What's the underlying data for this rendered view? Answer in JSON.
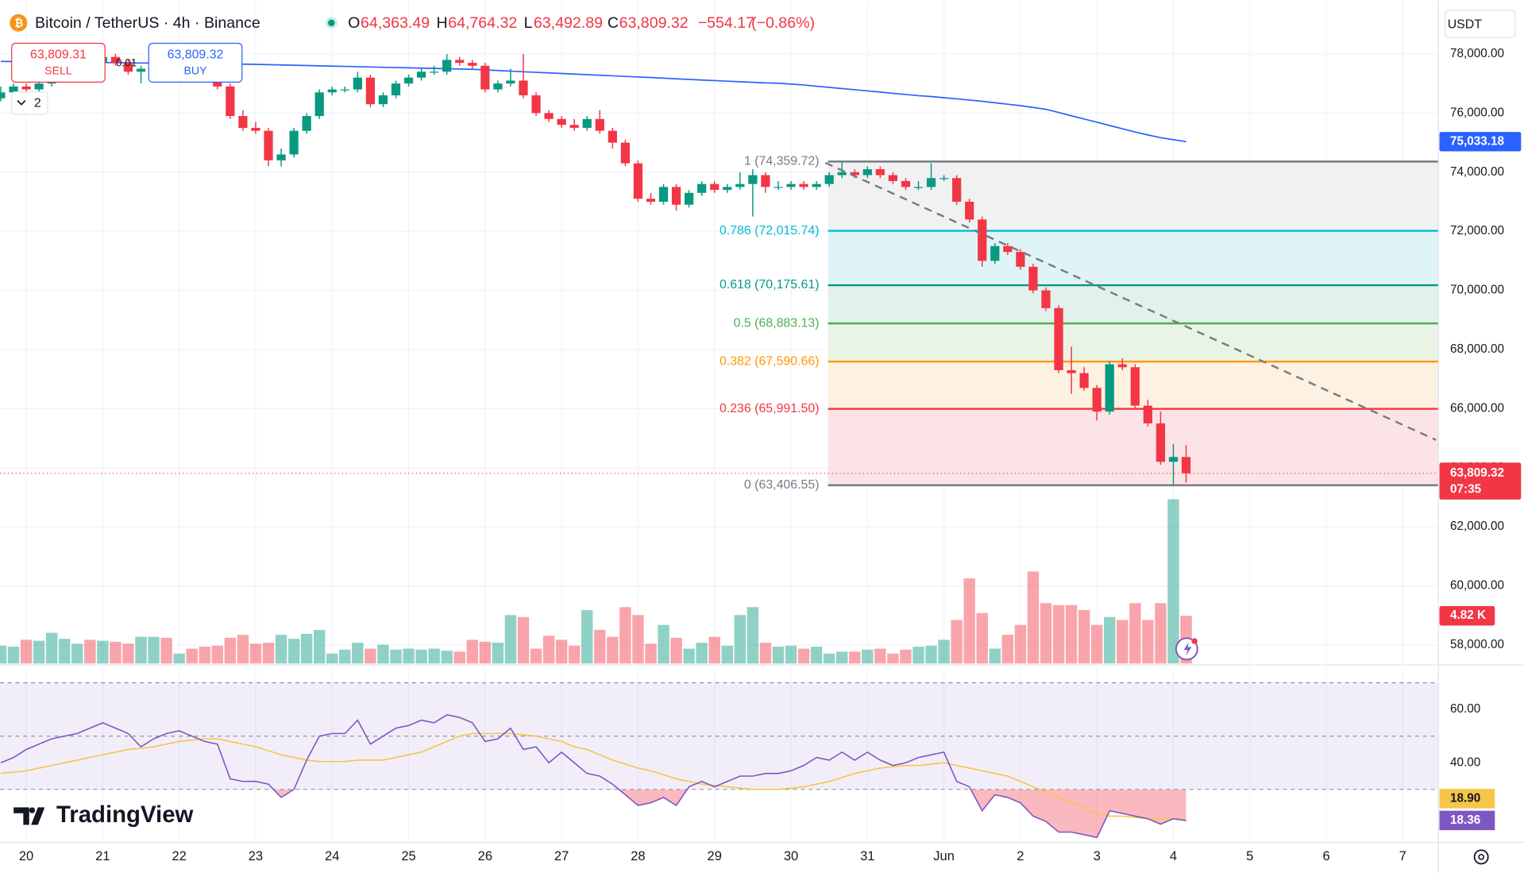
{
  "header": {
    "title": "Bitcoin / TetherUS · 4h · Binance",
    "ohlc": [
      {
        "key": "O",
        "value": 64363.49,
        "label": "64,363.49"
      },
      {
        "key": "H",
        "value": 64764.32,
        "label": "64,764.32"
      },
      {
        "key": "L",
        "value": 63492.89,
        "label": "63,492.89"
      },
      {
        "key": "C",
        "value": 63809.32,
        "label": "63,809.32"
      }
    ],
    "change": {
      "value": -554.17,
      "label": "−554.17"
    },
    "change_pct": {
      "value": -0.86,
      "label": "(−0.86%)"
    }
  },
  "trade": {
    "sell_price": {
      "value": 63809.31,
      "label": "63,809.31"
    },
    "sell": "SELL",
    "spread": 0.01,
    "buy_price": {
      "value": 63809.32,
      "label": "63,809.32"
    },
    "buy": "BUY",
    "indicators": 2
  },
  "currency": "USDT",
  "logo": "TradingView",
  "chart_data": {
    "type": "candlestick",
    "xlim": [
      -0.06,
      112.8
    ],
    "xticks": [
      {
        "value": 2,
        "label": "20"
      },
      {
        "value": 8,
        "label": "21"
      },
      {
        "value": 14,
        "label": "22"
      },
      {
        "value": 20,
        "label": "23"
      },
      {
        "value": 26,
        "label": "24"
      },
      {
        "value": 32,
        "label": "25"
      },
      {
        "value": 38,
        "label": "26"
      },
      {
        "value": 44,
        "label": "27"
      },
      {
        "value": 50,
        "label": "28"
      },
      {
        "value": 56,
        "label": "29"
      },
      {
        "value": 62,
        "label": "30"
      },
      {
        "value": 68,
        "label": "31"
      },
      {
        "value": 74,
        "label": "Jun"
      },
      {
        "value": 80,
        "label": "2"
      },
      {
        "value": 86,
        "label": "3"
      },
      {
        "value": 92,
        "label": "4"
      },
      {
        "value": 98,
        "label": "5"
      },
      {
        "value": 104,
        "label": "6"
      },
      {
        "value": 110,
        "label": "7"
      }
    ],
    "ylim": [
      57375,
      79810
    ],
    "yticks": [
      {
        "value": 58000,
        "label": "58,000.00"
      },
      {
        "value": 60000,
        "label": "60,000.00"
      },
      {
        "value": 62000,
        "label": "62,000.00"
      },
      {
        "value": 64000,
        "label": "64,000.00"
      },
      {
        "value": 66000,
        "label": "66,000.00"
      },
      {
        "value": 68000,
        "label": "68,000.00"
      },
      {
        "value": 70000,
        "label": "70,000.00"
      },
      {
        "value": 72000,
        "label": "72,000.00"
      },
      {
        "value": 74000,
        "label": "74,000.00"
      },
      {
        "value": 76000,
        "label": "76,000.00"
      },
      {
        "value": 78000,
        "label": "78,000.00"
      }
    ],
    "grid": true,
    "up_color": "#089981",
    "down_color": "#f23645",
    "candles": [
      [
        76500,
        76900,
        76400,
        76700
      ],
      [
        76700,
        77000,
        76600,
        76900
      ],
      [
        76900,
        77000,
        76700,
        76800
      ],
      [
        76800,
        77100,
        76700,
        77000
      ],
      [
        77000,
        77300,
        76900,
        77200
      ],
      [
        77200,
        77600,
        77100,
        77500
      ],
      [
        77500,
        77900,
        77400,
        77800
      ],
      [
        77800,
        77900,
        77600,
        77700
      ],
      [
        77700,
        78100,
        77600,
        77900
      ],
      [
        77900,
        78000,
        77600,
        77700
      ],
      [
        77700,
        77800,
        77300,
        77400
      ],
      [
        77400,
        77600,
        77000,
        77500
      ],
      [
        77500,
        77700,
        77400,
        77600
      ],
      [
        77600,
        77700,
        77400,
        77500
      ],
      [
        77500,
        77800,
        77400,
        77700
      ],
      [
        77700,
        77800,
        77500,
        77600
      ],
      [
        77600,
        77700,
        77300,
        77400
      ],
      [
        77400,
        77500,
        76800,
        76900
      ],
      [
        76900,
        77000,
        75800,
        75900
      ],
      [
        75900,
        76100,
        75400,
        75500
      ],
      [
        75500,
        75700,
        75300,
        75400
      ],
      [
        75400,
        75500,
        74200,
        74400
      ],
      [
        74400,
        74800,
        74200,
        74600
      ],
      [
        74600,
        75500,
        74500,
        75400
      ],
      [
        75400,
        76000,
        75300,
        75900
      ],
      [
        75900,
        76800,
        75800,
        76700
      ],
      [
        76700,
        76900,
        76600,
        76800
      ],
      [
        76800,
        76900,
        76700,
        76800
      ],
      [
        76800,
        77400,
        76700,
        77200
      ],
      [
        77200,
        77300,
        76200,
        76300
      ],
      [
        76300,
        76700,
        76200,
        76600
      ],
      [
        76600,
        77100,
        76500,
        77000
      ],
      [
        77000,
        77300,
        76900,
        77200
      ],
      [
        77200,
        77500,
        77100,
        77400
      ],
      [
        77400,
        77600,
        77300,
        77400
      ],
      [
        77400,
        78000,
        77300,
        77800
      ],
      [
        77800,
        77900,
        77600,
        77700
      ],
      [
        77700,
        77800,
        77500,
        77600
      ],
      [
        77600,
        77700,
        76700,
        76800
      ],
      [
        76800,
        77100,
        76700,
        77000
      ],
      [
        77000,
        77500,
        76900,
        77100
      ],
      [
        77100,
        78000,
        76500,
        76600
      ],
      [
        76600,
        76700,
        75900,
        76000
      ],
      [
        76000,
        76100,
        75700,
        75800
      ],
      [
        75800,
        75900,
        75500,
        75600
      ],
      [
        75600,
        75800,
        75400,
        75500
      ],
      [
        75500,
        75900,
        75400,
        75800
      ],
      [
        75800,
        76100,
        75300,
        75400
      ],
      [
        75400,
        75500,
        74800,
        75000
      ],
      [
        75000,
        75100,
        74200,
        74300
      ],
      [
        74300,
        74400,
        73000,
        73100
      ],
      [
        73100,
        73300,
        72900,
        73000
      ],
      [
        73000,
        73600,
        72900,
        73500
      ],
      [
        73500,
        73600,
        72700,
        72900
      ],
      [
        72900,
        73400,
        72800,
        73300
      ],
      [
        73300,
        73700,
        73200,
        73600
      ],
      [
        73600,
        73700,
        73300,
        73400
      ],
      [
        73400,
        73600,
        73300,
        73500
      ],
      [
        73500,
        74000,
        73400,
        73600
      ],
      [
        73600,
        74100,
        72500,
        73900
      ],
      [
        73900,
        74000,
        73300,
        73500
      ],
      [
        73500,
        73700,
        73400,
        73500
      ],
      [
        73500,
        73700,
        73400,
        73600
      ],
      [
        73600,
        73700,
        73400,
        73500
      ],
      [
        73500,
        73700,
        73400,
        73600
      ],
      [
        73600,
        74000,
        73500,
        73900
      ],
      [
        73900,
        74359.72,
        73800,
        74000
      ],
      [
        74000,
        74100,
        73800,
        73900
      ],
      [
        73900,
        74200,
        73800,
        74100
      ],
      [
        74100,
        74200,
        73800,
        73900
      ],
      [
        73900,
        74000,
        73600,
        73700
      ],
      [
        73700,
        73800,
        73400,
        73500
      ],
      [
        73500,
        73700,
        73400,
        73500
      ],
      [
        73500,
        74300,
        73400,
        73800
      ],
      [
        73800,
        73900,
        73700,
        73800
      ],
      [
        73800,
        73900,
        72900,
        73000
      ],
      [
        73000,
        73100,
        72300,
        72400
      ],
      [
        72400,
        72500,
        70800,
        71000
      ],
      [
        71000,
        71600,
        70900,
        71500
      ],
      [
        71500,
        71600,
        71200,
        71300
      ],
      [
        71300,
        71400,
        70700,
        70800
      ],
      [
        70800,
        70900,
        69900,
        70000
      ],
      [
        70000,
        70100,
        69300,
        69400
      ],
      [
        69400,
        69500,
        67200,
        67300
      ],
      [
        67300,
        68100,
        66500,
        67200
      ],
      [
        67200,
        67400,
        66600,
        66700
      ],
      [
        66700,
        66800,
        65600,
        65900
      ],
      [
        65900,
        67600,
        65800,
        67500
      ],
      [
        67500,
        67700,
        67300,
        67400
      ],
      [
        67400,
        67500,
        66000,
        66100
      ],
      [
        66100,
        66300,
        65400,
        65500
      ],
      [
        65500,
        65900,
        64100,
        64200
      ],
      [
        64200,
        64800,
        63406.55,
        64363.49
      ],
      [
        64363.49,
        64764.32,
        63492.89,
        63809.32
      ]
    ],
    "ma": {
      "color": "#2962ff",
      "values": [
        77750,
        77745,
        77740,
        77735,
        77730,
        77725,
        77720,
        77715,
        77710,
        77705,
        77700,
        77695,
        77690,
        77685,
        77680,
        77675,
        77670,
        77665,
        77660,
        77655,
        77650,
        77640,
        77630,
        77620,
        77610,
        77600,
        77590,
        77580,
        77570,
        77560,
        77550,
        77540,
        77530,
        77520,
        77510,
        77500,
        77490,
        77480,
        77460,
        77440,
        77420,
        77400,
        77380,
        77360,
        77340,
        77320,
        77300,
        77280,
        77260,
        77240,
        77220,
        77200,
        77180,
        77160,
        77140,
        77120,
        77100,
        77080,
        77060,
        77040,
        77020,
        77010,
        76980,
        76950,
        76910,
        76870,
        76830,
        76790,
        76750,
        76710,
        76670,
        76630,
        76590,
        76560,
        76520,
        76480,
        76440,
        76400,
        76350,
        76300,
        76250,
        76190,
        76130,
        76020,
        75910,
        75800,
        75690,
        75580,
        75470,
        75360,
        75260,
        75170,
        75100,
        75033.18
      ],
      "last_value_label": "75,033.18"
    },
    "last_price": {
      "value": 63809.32,
      "label": "63,809.32",
      "countdown": "07:35"
    },
    "volume": {
      "ylim": [
        0,
        67000
      ],
      "values": [
        1800,
        1700,
        2400,
        2300,
        3100,
        2500,
        2000,
        2400,
        2300,
        2200,
        2000,
        2700,
        2700,
        2600,
        1000,
        1500,
        1700,
        1800,
        2600,
        2900,
        2000,
        2100,
        2900,
        2500,
        3000,
        3400,
        1000,
        1400,
        2100,
        1500,
        1900,
        1400,
        1500,
        1400,
        1500,
        1300,
        1200,
        2400,
        2200,
        2100,
        4900,
        4700,
        1500,
        2800,
        2400,
        1800,
        5400,
        3400,
        2700,
        5700,
        4900,
        2000,
        3900,
        2600,
        1500,
        2100,
        2700,
        1800,
        4900,
        5700,
        2100,
        1700,
        1800,
        1500,
        1700,
        1000,
        1200,
        1200,
        1400,
        1500,
        1000,
        1400,
        1700,
        1800,
        2400,
        4400,
        8600,
        5100,
        1500,
        2900,
        3900,
        9300,
        6100,
        5900,
        5900,
        5400,
        3900,
        4700,
        4400,
        6100,
        4400,
        6100,
        16600,
        4820
      ],
      "last_value_label": "4.82 K"
    },
    "fib": {
      "x_start": 64.9,
      "levels": [
        {
          "label": "1 (74,359.72)",
          "value": 74359.72,
          "color": "#787b86",
          "fill": "#f1f1f2"
        },
        {
          "label": "0.786 (72,015.74)",
          "value": 72015.74,
          "color": "#00bcd4",
          "fill": "#e0f4f8"
        },
        {
          "label": "0.618 (70,175.61)",
          "value": 70175.61,
          "color": "#089981",
          "fill": "#e3f1ec"
        },
        {
          "label": "0.5 (68,883.13)",
          "value": 68883.13,
          "color": "#4caf50",
          "fill": "#eaf4e6"
        },
        {
          "label": "0.382 (67,590.66)",
          "value": 67590.66,
          "color": "#ff9800",
          "fill": "#fdf1e1"
        },
        {
          "label": "0.236 (65,991.50)",
          "value": 65991.5,
          "color": "#f23645",
          "fill": "#fce4e6"
        },
        {
          "label": "0 (63,406.55)",
          "value": 63406.55,
          "color": "#787b86",
          "fill": "#ffffff"
        }
      ]
    },
    "trendline": {
      "x": [
        64.7,
        112.6
      ],
      "values": [
        74316,
        64941
      ],
      "color": "#787b86"
    },
    "rsi": {
      "ylim": [
        10.5,
        75.8
      ],
      "yticks": [
        {
          "value": 60,
          "label": "60.00"
        },
        {
          "value": 40,
          "label": "40.00"
        }
      ],
      "bands": [
        70,
        50,
        30
      ],
      "color": "#7e57c2",
      "ma_color": "#f7c548",
      "values": [
        40,
        42,
        45,
        47,
        49,
        50,
        51,
        53,
        55,
        53,
        51,
        46,
        49,
        51,
        52,
        50,
        48,
        47,
        34,
        33,
        33,
        32,
        27,
        30,
        41,
        50,
        51,
        51,
        56,
        47,
        50,
        53,
        54,
        56,
        55,
        58,
        57,
        55,
        48,
        49,
        53,
        45,
        46,
        40,
        44,
        40,
        36,
        35,
        32,
        28,
        24,
        25,
        27,
        24,
        31,
        33,
        31,
        33,
        35,
        35,
        36,
        36,
        37,
        39,
        42,
        41,
        44,
        41,
        44,
        41,
        39,
        40,
        42,
        43,
        44,
        33,
        31,
        22,
        28,
        27,
        25,
        20,
        18,
        14,
        14,
        13,
        12,
        22,
        21,
        20,
        19,
        17,
        19,
        18.36
      ],
      "ma": [
        36,
        36.5,
        37,
        38,
        39,
        40,
        41,
        42,
        43,
        44,
        45,
        45.5,
        46,
        47,
        48,
        48.5,
        49,
        49,
        48,
        47,
        46,
        44.5,
        43,
        42,
        41,
        40.5,
        40.5,
        40.5,
        41,
        41,
        41,
        42,
        43,
        44,
        46,
        48,
        50,
        51,
        51,
        51,
        51,
        50.5,
        50,
        49,
        48,
        46,
        45,
        43,
        41,
        39.5,
        38,
        37,
        35.5,
        34,
        33,
        32,
        31.5,
        31,
        30.5,
        30,
        30,
        30,
        30.5,
        31,
        32,
        33,
        34.5,
        36,
        37,
        38,
        38.5,
        39,
        39,
        39.5,
        40,
        39,
        38,
        37,
        36,
        35,
        33,
        31,
        29,
        27,
        25,
        23,
        21,
        20,
        20,
        19.5,
        19,
        19,
        19,
        18.9
      ],
      "last_value_label": "18.36",
      "ma_last_value_label": "18.90"
    }
  }
}
